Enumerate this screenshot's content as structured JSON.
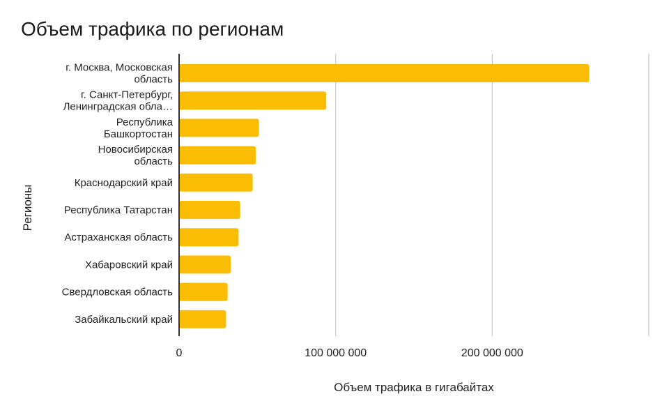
{
  "chart_data": {
    "type": "bar",
    "orientation": "horizontal",
    "title": "Объем трафика по регионам",
    "xlabel": "Объем трафика в гигабайтах",
    "ylabel": "Регионы",
    "categories": [
      [
        "г. Москва, Московская",
        "область"
      ],
      [
        "г. Санкт-Петербург,",
        "Ленинградская обла…"
      ],
      [
        "Республика",
        "Башкортостан"
      ],
      [
        "Новосибирская",
        "область"
      ],
      [
        "Краснодарский край"
      ],
      [
        "Республика Татарстан"
      ],
      [
        "Астраханская область"
      ],
      [
        "Хабаровский край"
      ],
      [
        "Свердловская область"
      ],
      [
        "Забайкальский край"
      ]
    ],
    "values": [
      262000000,
      94000000,
      51000000,
      49000000,
      47000000,
      39000000,
      38000000,
      33000000,
      31000000,
      30000000
    ],
    "xlim": [
      0,
      300000000
    ],
    "xticks": [
      0,
      100000000,
      200000000,
      300000000
    ],
    "xtick_labels": [
      "0",
      "100 000 000",
      "200 000 000",
      ""
    ],
    "grid": "vertical",
    "legend": "none",
    "bar_color": "#FBBC04",
    "grid_color": "#c8c8c8",
    "axis_color": "#333333",
    "text_color": "#222222"
  }
}
